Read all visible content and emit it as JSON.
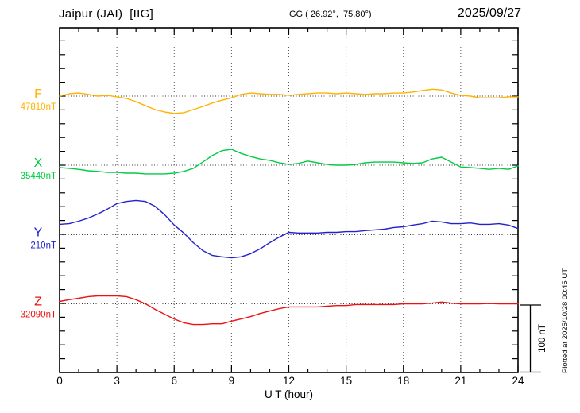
{
  "header": {
    "station_title": "Jaipur (JAI)  [IIG]",
    "coords": "GG ( 26.92°,  75.80°)",
    "date": "2025/09/27"
  },
  "footer_note": "Plotted at 2025/10/28 00:45 UT",
  "chart_data": {
    "type": "line",
    "title": "Magnetogram Jaipur (JAI) [IIG] 2025/09/27",
    "xlabel": "U T (hour)",
    "x_range": [
      0,
      24
    ],
    "x_ticks": [
      0,
      3,
      6,
      9,
      12,
      15,
      18,
      21,
      24
    ],
    "x_minor_step_hours": 1,
    "grid_hours": [
      3,
      6,
      9,
      12,
      15,
      18,
      21
    ],
    "grid": true,
    "y_minor_tick_nT": 20,
    "baseline_separation_nT": 100,
    "scale_bar": {
      "label": "100 nT",
      "nT": 100
    },
    "x_start_hour": 0,
    "x_step_hours": 0.5,
    "series": [
      {
        "name": "F",
        "label": "F",
        "base_label": "47810nT",
        "base_value": 47810,
        "unit": "nT",
        "color": "#FFB200",
        "offsets_nT": [
          0,
          3.5,
          4.5,
          2.5,
          0,
          1,
          -1,
          -3.5,
          -8,
          -14,
          -19.5,
          -23,
          -25,
          -24,
          -19.5,
          -15,
          -10,
          -6,
          -2.5,
          2.5,
          4.5,
          3.5,
          2.5,
          2.5,
          1,
          2.5,
          3.5,
          4.5,
          4.5,
          3.5,
          4.5,
          3.5,
          2.5,
          3.5,
          3.5,
          4.5,
          4.5,
          6,
          8,
          10,
          9,
          4.5,
          1,
          0,
          -2.5,
          -2.5,
          -2.5,
          -1,
          -1
        ]
      },
      {
        "name": "X",
        "label": "X",
        "base_label": "35440nT",
        "base_value": 35440,
        "unit": "nT",
        "color": "#00CC44",
        "offsets_nT": [
          -3.5,
          -4.5,
          -6,
          -8,
          -9,
          -10.5,
          -10.5,
          -11.5,
          -11.5,
          -12.5,
          -12.5,
          -12.5,
          -11.5,
          -9,
          -4.5,
          4.5,
          14,
          21,
          23,
          17,
          12.5,
          9,
          7,
          3.5,
          1,
          2.5,
          6,
          3.5,
          1,
          0,
          0,
          1,
          3.5,
          4.5,
          4.5,
          4.5,
          3.5,
          2.5,
          3.5,
          9,
          11.5,
          4.5,
          -2.5,
          -3.5,
          -4.5,
          -6,
          -4.5,
          -6,
          -1
        ]
      },
      {
        "name": "Y",
        "label": "Y",
        "base_label": "210nT",
        "base_value": 210,
        "unit": "nT",
        "color": "#2222CC",
        "offsets_nT": [
          15,
          16,
          19.5,
          24,
          30,
          37,
          45,
          48,
          49.5,
          48,
          41,
          29,
          14,
          2.5,
          -11.5,
          -23,
          -30,
          -32,
          -33.5,
          -32,
          -27.5,
          -20.5,
          -11.5,
          -3.5,
          3.5,
          2.5,
          2.5,
          2.5,
          3.5,
          3.5,
          4.5,
          4.5,
          6,
          7,
          8,
          10.5,
          11.5,
          14,
          16,
          19.5,
          18.5,
          16,
          16,
          17,
          15,
          15,
          16,
          14,
          9
        ]
      },
      {
        "name": "Z",
        "label": "Z",
        "base_label": "32090nT",
        "base_value": 32090,
        "unit": "nT",
        "color": "#EE1111",
        "offsets_nT": [
          3.5,
          6,
          8,
          10.5,
          11.5,
          11.5,
          11.5,
          10.5,
          6,
          0,
          -8,
          -15,
          -22,
          -27.5,
          -30,
          -30,
          -29,
          -29,
          -25,
          -22,
          -18.5,
          -14,
          -10.5,
          -7,
          -4.5,
          -4.5,
          -4.5,
          -4.5,
          -3.5,
          -2.5,
          -2.5,
          -1,
          -1,
          -1,
          -1,
          -1,
          0,
          0,
          0,
          1,
          2.5,
          1,
          0,
          0,
          0,
          0.5,
          0,
          0,
          0
        ]
      }
    ]
  }
}
